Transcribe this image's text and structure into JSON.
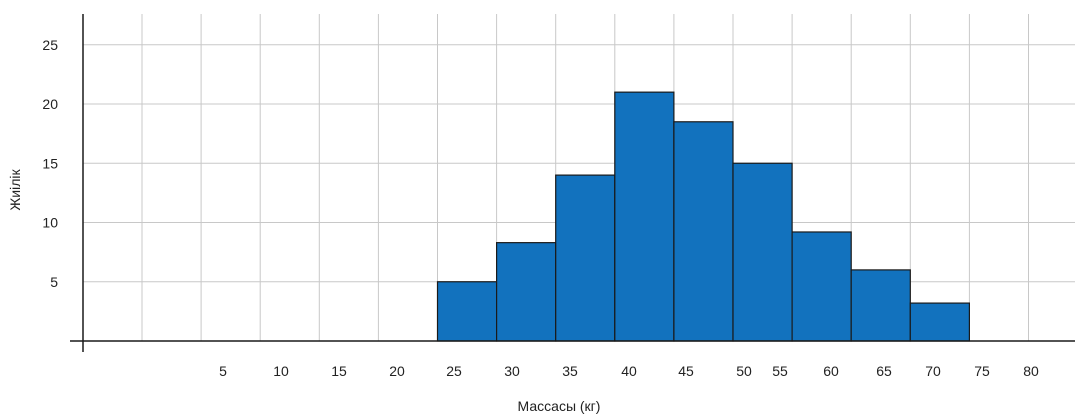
{
  "chart_data": {
    "type": "bar",
    "xlabel": "Массасы (кг)",
    "ylabel": "Жиілік",
    "ylim": [
      0,
      27
    ],
    "grid": true,
    "yticks": [
      5,
      10,
      15,
      20,
      25
    ],
    "xtick_labels": [
      "5",
      "10",
      "15",
      "20",
      "25",
      "30",
      "35",
      "40",
      "45",
      "50",
      "55",
      "60",
      "65",
      "70",
      "75",
      "80"
    ],
    "bins": [
      "25–30",
      "30–35",
      "35–40",
      "40–45",
      "45–50",
      "50–55",
      "55–60",
      "60–65",
      "65–70"
    ],
    "values": [
      5,
      8.3,
      14,
      21,
      18.5,
      15,
      9.2,
      6,
      3.2
    ],
    "colors": {
      "bar": "#1272be",
      "bar_stroke": "#1a1a1a",
      "grid": "#c8c8c8",
      "axis": "#1a1a1a"
    }
  }
}
